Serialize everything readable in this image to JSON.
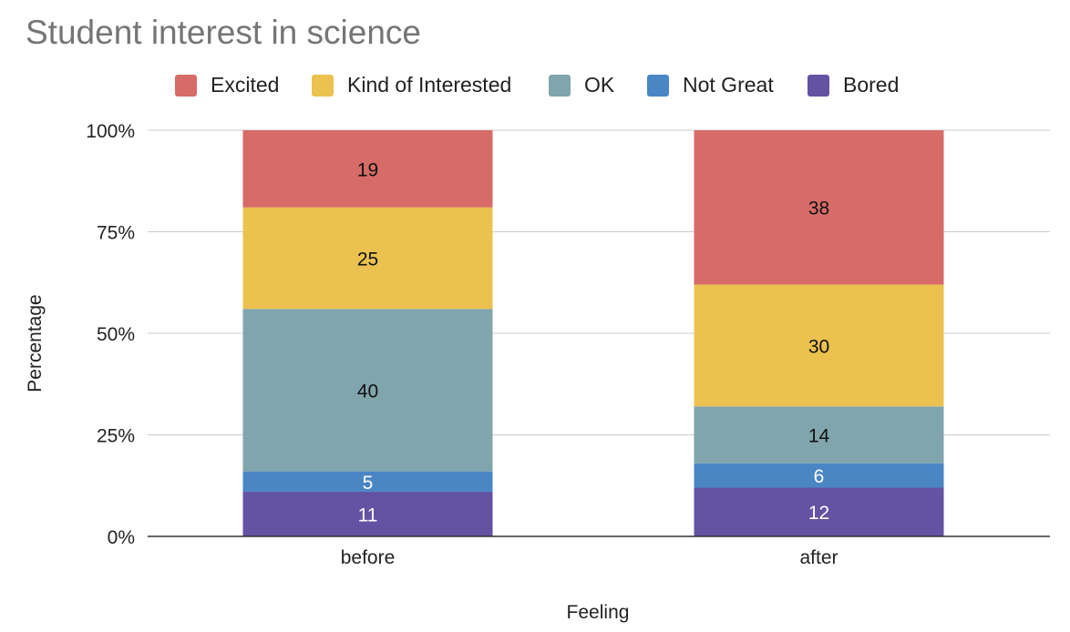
{
  "chart_data": {
    "type": "bar",
    "stacked": true,
    "percent_stacked": true,
    "title": "Student interest in science",
    "xlabel": "Feeling",
    "ylabel": "Percentage",
    "categories": [
      "before",
      "after"
    ],
    "y_ticks": [
      "0%",
      "25%",
      "50%",
      "75%",
      "100%"
    ],
    "ylim": [
      0,
      100
    ],
    "grid": true,
    "legend_position": "top",
    "series": [
      {
        "name": "Bored",
        "color": "#6452a3",
        "values": [
          11,
          12
        ],
        "label_color": "#ffffff"
      },
      {
        "name": "Not Great",
        "color": "#4a86c4",
        "values": [
          5,
          6
        ],
        "label_color": "#ffffff"
      },
      {
        "name": "OK",
        "color": "#80a5ad",
        "values": [
          40,
          14
        ],
        "label_color": "#111111"
      },
      {
        "name": "Kind of Interested",
        "color": "#ebc250",
        "values": [
          25,
          30
        ],
        "label_color": "#111111"
      },
      {
        "name": "Excited",
        "color": "#d66b68",
        "values": [
          19,
          38
        ],
        "label_color": "#111111"
      }
    ],
    "legend_order": [
      "Excited",
      "Kind of Interested",
      "OK",
      "Not Great",
      "Bored"
    ]
  }
}
